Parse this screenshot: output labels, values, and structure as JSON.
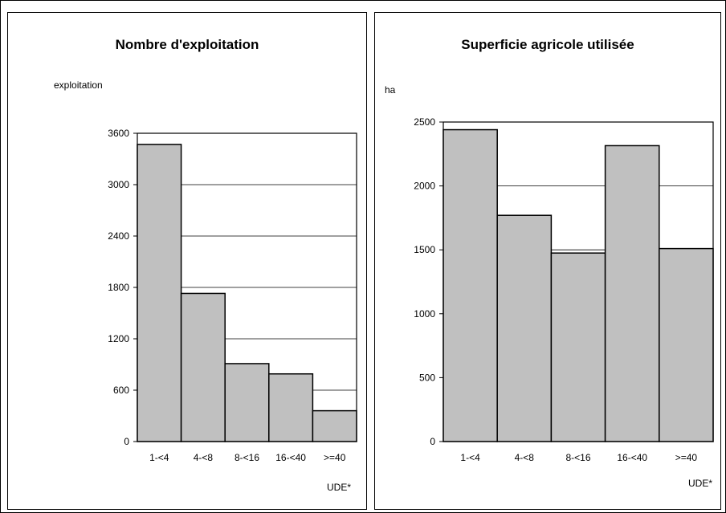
{
  "chart_data": [
    {
      "type": "bar",
      "title": "Nombre d'exploitation",
      "ylabel": "exploitation",
      "xlabel": "UDE*",
      "categories": [
        "1-<4",
        "4-<8",
        "8-<16",
        "16-<40",
        ">=40"
      ],
      "values": [
        3470,
        1730,
        910,
        790,
        360
      ],
      "yticks": [
        0,
        600,
        1200,
        1800,
        2400,
        3000,
        3600
      ],
      "ylim": [
        0,
        3600
      ],
      "grid": true,
      "bar_color": "#c0c0c0"
    },
    {
      "type": "bar",
      "title": "Superficie agricole utilisée",
      "ylabel": "ha",
      "xlabel": "UDE*",
      "categories": [
        "1-<4",
        "4-<8",
        "8-<16",
        "16-<40",
        ">=40"
      ],
      "values": [
        2440,
        1770,
        1475,
        2315,
        1510
      ],
      "yticks": [
        0,
        500,
        1000,
        1500,
        2000,
        2500
      ],
      "ylim": [
        0,
        2500
      ],
      "grid": true,
      "bar_color": "#c0c0c0"
    }
  ]
}
